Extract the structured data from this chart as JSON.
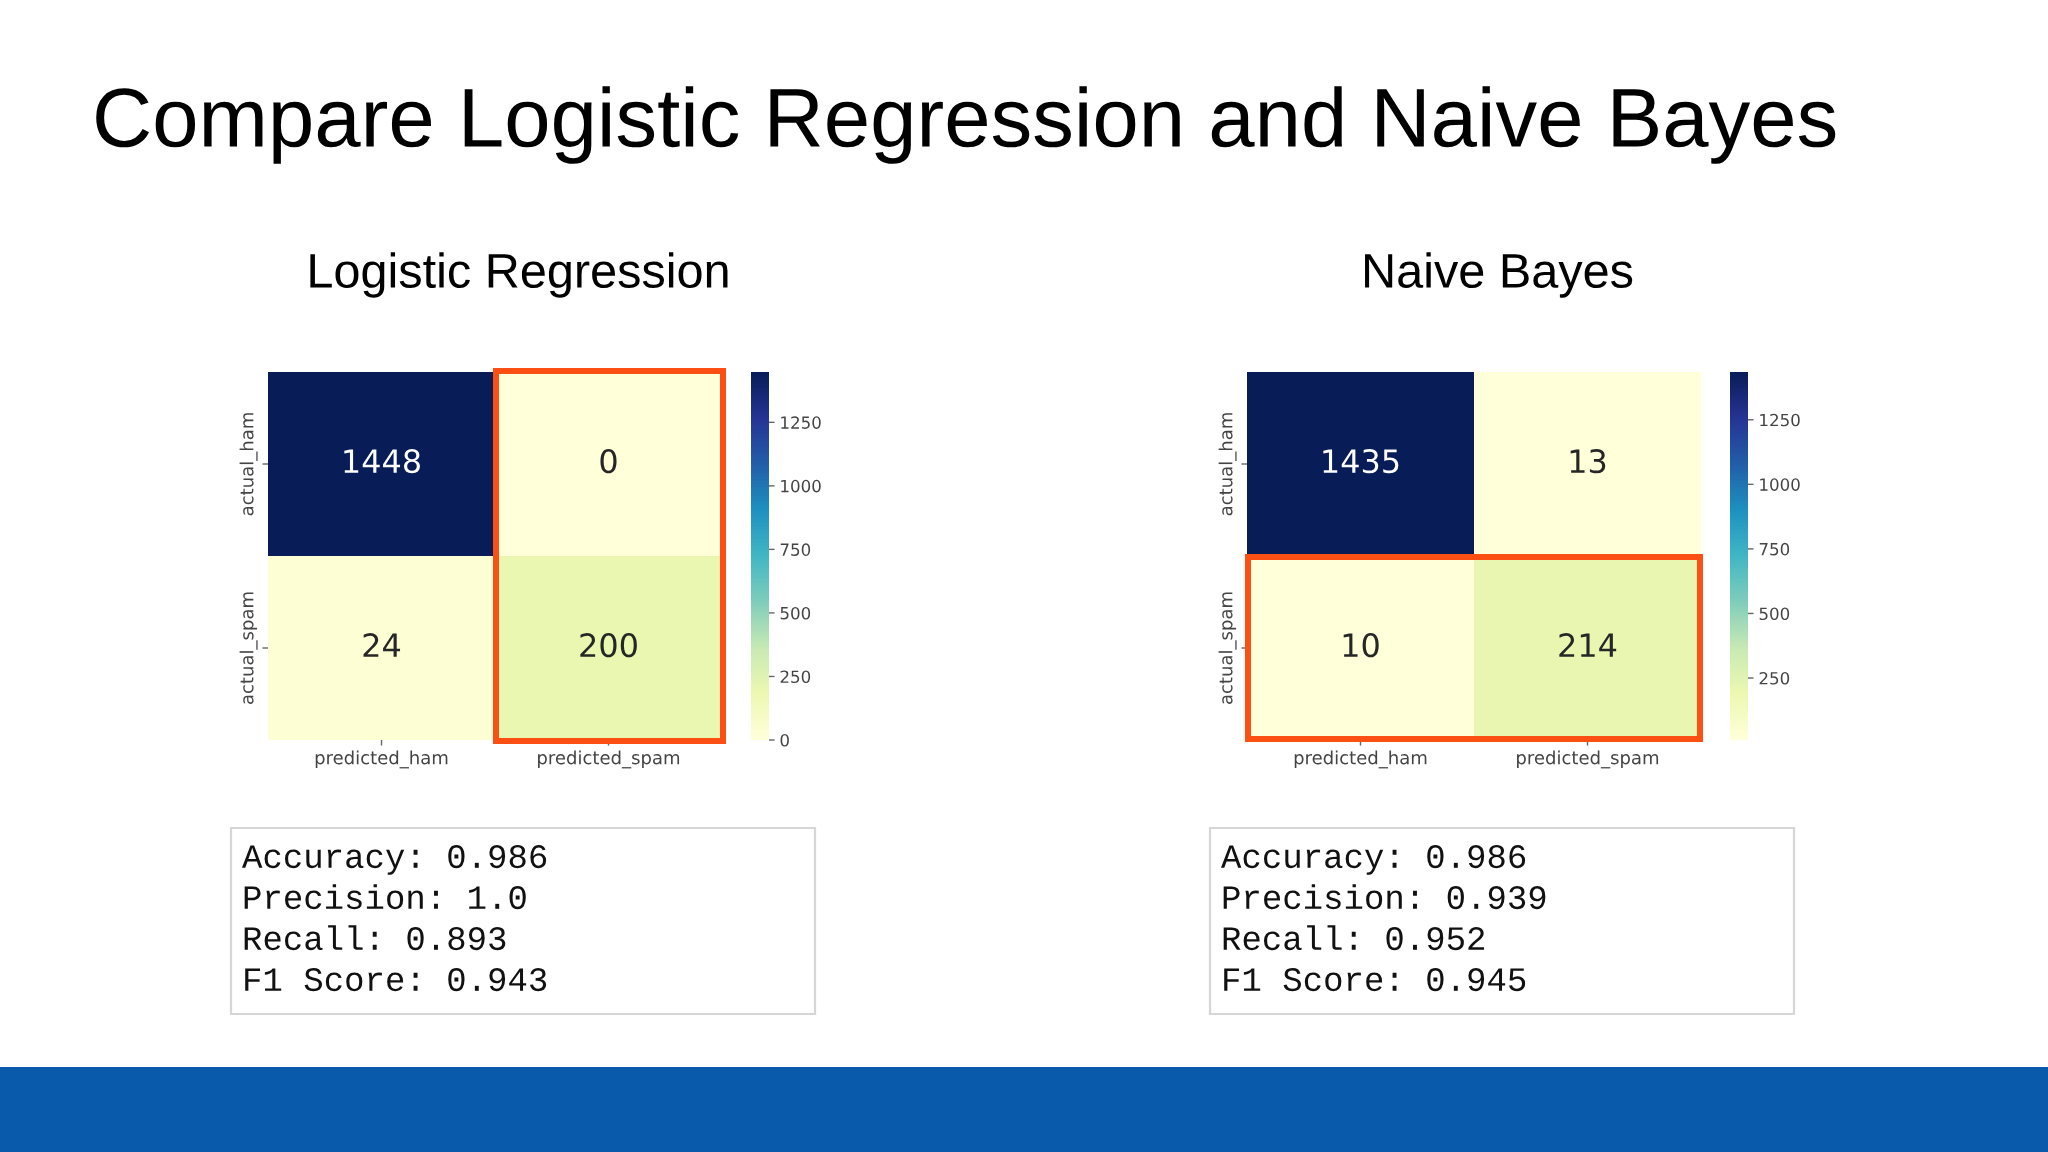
{
  "chart_data": [
    {
      "type": "other",
      "title": "Compare Logistic Regression and Naive Bayes"
    },
    {
      "type": "heatmap",
      "title": "Logistic Regression",
      "categories": [
        "predicted_ham",
        "predicted_spam"
      ],
      "y_categories": [
        "actual_ham",
        "actual_spam"
      ],
      "cells": [
        [
          1448,
          0
        ],
        [
          24,
          200
        ]
      ],
      "data_labels": true,
      "clim": [
        0,
        1448
      ],
      "cticks": [
        0,
        250,
        500,
        750,
        1000,
        1250
      ],
      "bands": [
        {
          "axis": "x",
          "from": "predicted_spam",
          "to": "predicted_spam",
          "color": "#fb4f14"
        }
      ],
      "annotations": [
        "Accuracy: 0.986",
        "Precision: 1.0",
        "Recall: 0.893",
        "F1 Score: 0.943"
      ]
    },
    {
      "type": "heatmap",
      "title": "Naive Bayes",
      "categories": [
        "predicted_ham",
        "predicted_spam"
      ],
      "y_categories": [
        "actual_ham",
        "actual_spam"
      ],
      "cells": [
        [
          1435,
          13
        ],
        [
          10,
          214
        ]
      ],
      "data_labels": true,
      "clim": [
        10,
        1435
      ],
      "cticks": [
        250,
        500,
        750,
        1000,
        1250
      ],
      "bands": [
        {
          "axis": "y",
          "from": "actual_spam",
          "to": "actual_spam",
          "color": "#fb4f14"
        }
      ],
      "annotations": [
        "Accuracy: 0.986",
        "Precision: 0.939",
        "Recall: 0.952",
        "F1 Score: 0.945"
      ]
    }
  ]
}
